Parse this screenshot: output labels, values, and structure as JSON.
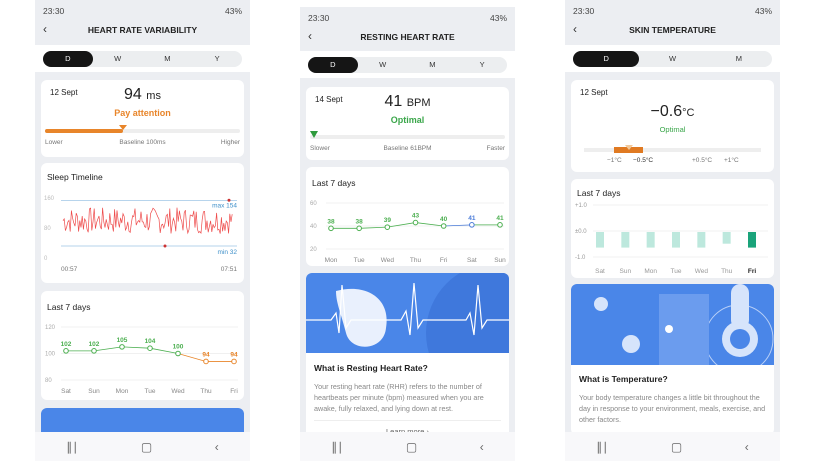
{
  "status": {
    "time": "23:30",
    "battery": "43%"
  },
  "nav_icons": [
    "recents-icon",
    "home-icon",
    "back-icon"
  ],
  "hrv": {
    "title": "HEART RATE VARIABILITY",
    "tabs": [
      "D",
      "W",
      "M",
      "Y"
    ],
    "active_tab": "D",
    "date": "12 Sept",
    "value": "94",
    "unit": "ms",
    "status": "Pay attention",
    "status_color": "#e8852a",
    "gauge_fraction": 0.4,
    "gauge_labels": {
      "low": "Lower",
      "mid": "Baseline 100ms",
      "high": "Higher"
    },
    "sleep": {
      "title": "Sleep Timeline",
      "y_ticks": [
        "160",
        "80",
        "0"
      ],
      "max_label": "max 154",
      "min_label": "min 32",
      "start": "00:57",
      "end": "07:51",
      "max": 154,
      "min": 32
    },
    "last7": {
      "title": "Last 7 days",
      "y_ticks": [
        "120",
        "100",
        "80"
      ],
      "ylim": [
        80,
        120
      ],
      "days": [
        "Sat",
        "Sun",
        "Mon",
        "Tue",
        "Wed",
        "Thu",
        "Fri"
      ],
      "values": [
        102,
        102,
        105,
        104,
        100,
        94,
        94
      ],
      "colors": [
        "#4caf50",
        "#4caf50",
        "#4caf50",
        "#4caf50",
        "#4caf50",
        "#e8852a",
        "#e8852a"
      ]
    }
  },
  "rhr": {
    "title": "RESTING HEART RATE",
    "tabs": [
      "D",
      "W",
      "M",
      "Y"
    ],
    "active_tab": "D",
    "date": "14 Sept",
    "value": "41",
    "unit": "BPM",
    "status": "Optimal",
    "status_color": "#3aa64a",
    "gauge_labels": {
      "low": "Slower",
      "mid": "Baseline 61BPM",
      "high": "Faster"
    },
    "last7": {
      "title": "Last 7 days",
      "y_ticks": [
        "60",
        "40",
        "20"
      ],
      "ylim": [
        20,
        60
      ],
      "days": [
        "Mon",
        "Tue",
        "Wed",
        "Thu",
        "Fri",
        "Sat",
        "Sun"
      ],
      "values": [
        38,
        38,
        39,
        43,
        40,
        41,
        41
      ],
      "colors": [
        "#4caf50",
        "#4caf50",
        "#4caf50",
        "#4caf50",
        "#4caf50",
        "#4a7bd8",
        "#4caf50"
      ]
    },
    "info": {
      "title": "What is Resting Heart Rate?",
      "body": "Your resting heart rate (RHR) refers to the number of heartbeats per minute (bpm) measured when you are awake, fully relaxed, and lying down at rest.",
      "link": "Learn more"
    }
  },
  "temp": {
    "title": "SKIN TEMPERATURE",
    "tabs": [
      "D",
      "W",
      "M"
    ],
    "active_tab": "D",
    "date": "12 Sept",
    "value": "−0.6",
    "unit": "°C",
    "status": "Optimal",
    "status_color": "#3aa64a",
    "gauge_labels": [
      "−1°C",
      "−0.5°C",
      "+0.5°C",
      "+1°C"
    ],
    "last7": {
      "title": "Last 7 days",
      "y_ticks": [
        "+1.0",
        "±0.0",
        "-1.0"
      ],
      "ylim": [
        -1,
        1
      ],
      "days": [
        "Sat",
        "Sun",
        "Mon",
        "Tue",
        "Wed",
        "Thu",
        "Fri"
      ],
      "values": [
        -0.6,
        -0.6,
        -0.6,
        -0.6,
        -0.6,
        -0.45,
        -0.6
      ]
    },
    "info": {
      "title": "What is Temperature?",
      "body": "Your body temperature changes a little bit throughout the day in response to your environment, meals, exercise, and other factors."
    }
  }
}
